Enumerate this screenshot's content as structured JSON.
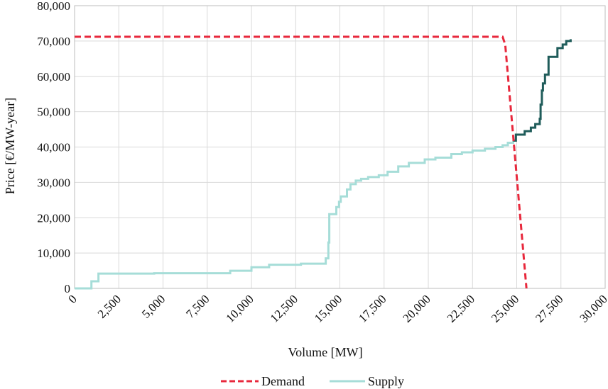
{
  "chart_data": {
    "type": "line",
    "title": "",
    "xlabel": "Volume [MW]",
    "ylabel": "Price [€/MW-year]",
    "xlim": [
      0,
      30000
    ],
    "ylim": [
      0,
      80000
    ],
    "x_ticks": [
      0,
      2500,
      5000,
      7500,
      10000,
      12500,
      15000,
      17500,
      20000,
      22500,
      25000,
      27500,
      30000
    ],
    "x_tick_labels": [
      "0",
      "2,500",
      "5,000",
      "7,500",
      "10,000",
      "12,500",
      "15,000",
      "17,500",
      "20,000",
      "22,500",
      "25,000",
      "27,500",
      "30,000"
    ],
    "y_ticks": [
      0,
      10000,
      20000,
      30000,
      40000,
      50000,
      60000,
      70000,
      80000
    ],
    "y_tick_labels": [
      "0",
      "10,000",
      "20,000",
      "30,000",
      "40,000",
      "50,000",
      "60,000",
      "70,000",
      "80,000"
    ],
    "grid": true,
    "legend_position": "bottom",
    "series": [
      {
        "name": "Demand",
        "color": "#e8283c",
        "style": "dashed",
        "points": [
          [
            0,
            71200
          ],
          [
            24200,
            71200
          ],
          [
            24350,
            69000
          ],
          [
            25550,
            0
          ]
        ]
      },
      {
        "name": "Supply",
        "color": "#a6ddd8",
        "style": "step",
        "points": [
          [
            0,
            0
          ],
          [
            950,
            0
          ],
          [
            950,
            2000
          ],
          [
            1350,
            2000
          ],
          [
            1350,
            4200
          ],
          [
            4500,
            4200
          ],
          [
            4500,
            4300
          ],
          [
            8800,
            4300
          ],
          [
            8800,
            5000
          ],
          [
            10000,
            5000
          ],
          [
            10000,
            6000
          ],
          [
            11000,
            6000
          ],
          [
            11000,
            6700
          ],
          [
            12800,
            6700
          ],
          [
            12800,
            7000
          ],
          [
            14200,
            7000
          ],
          [
            14200,
            8500
          ],
          [
            14350,
            8500
          ],
          [
            14350,
            13000
          ],
          [
            14400,
            13000
          ],
          [
            14400,
            21000
          ],
          [
            14800,
            21000
          ],
          [
            14800,
            23000
          ],
          [
            14950,
            23000
          ],
          [
            14950,
            24500
          ],
          [
            15050,
            24500
          ],
          [
            15050,
            26000
          ],
          [
            15400,
            26000
          ],
          [
            15400,
            28000
          ],
          [
            15600,
            28000
          ],
          [
            15600,
            29500
          ],
          [
            15900,
            29500
          ],
          [
            15900,
            30500
          ],
          [
            16200,
            30500
          ],
          [
            16200,
            31000
          ],
          [
            16600,
            31000
          ],
          [
            16600,
            31500
          ],
          [
            17200,
            31500
          ],
          [
            17200,
            32000
          ],
          [
            17700,
            32000
          ],
          [
            17700,
            33000
          ],
          [
            18300,
            33000
          ],
          [
            18300,
            34500
          ],
          [
            18900,
            34500
          ],
          [
            18900,
            35500
          ],
          [
            19800,
            35500
          ],
          [
            19800,
            36500
          ],
          [
            20400,
            36500
          ],
          [
            20400,
            37000
          ],
          [
            21300,
            37000
          ],
          [
            21300,
            38000
          ],
          [
            21900,
            38000
          ],
          [
            21900,
            38500
          ],
          [
            22500,
            38500
          ],
          [
            22500,
            39000
          ],
          [
            23200,
            39000
          ],
          [
            23200,
            39500
          ],
          [
            23800,
            39500
          ],
          [
            23800,
            40000
          ],
          [
            24200,
            40000
          ],
          [
            24200,
            40500
          ],
          [
            24500,
            40500
          ],
          [
            24500,
            41200
          ],
          [
            24800,
            41200
          ],
          [
            24800,
            41800
          ]
        ]
      }
    ],
    "supply_above_intersection": {
      "color": "#1f5c5a",
      "points": [
        [
          24800,
          41800
        ],
        [
          24950,
          41800
        ],
        [
          24950,
          43500
        ],
        [
          25450,
          43500
        ],
        [
          25450,
          44500
        ],
        [
          25800,
          44500
        ],
        [
          25800,
          45500
        ],
        [
          26050,
          45500
        ],
        [
          26050,
          46500
        ],
        [
          26300,
          46500
        ],
        [
          26300,
          48000
        ],
        [
          26350,
          48000
        ],
        [
          26350,
          52000
        ],
        [
          26420,
          52000
        ],
        [
          26420,
          56000
        ],
        [
          26480,
          56000
        ],
        [
          26480,
          58000
        ],
        [
          26600,
          58000
        ],
        [
          26600,
          60500
        ],
        [
          26800,
          60500
        ],
        [
          26800,
          65500
        ],
        [
          27300,
          65500
        ],
        [
          27300,
          68000
        ],
        [
          27600,
          68000
        ],
        [
          27600,
          69000
        ],
        [
          27800,
          69000
        ],
        [
          27800,
          70000
        ],
        [
          28050,
          70000
        ],
        [
          28050,
          70500
        ]
      ]
    }
  }
}
